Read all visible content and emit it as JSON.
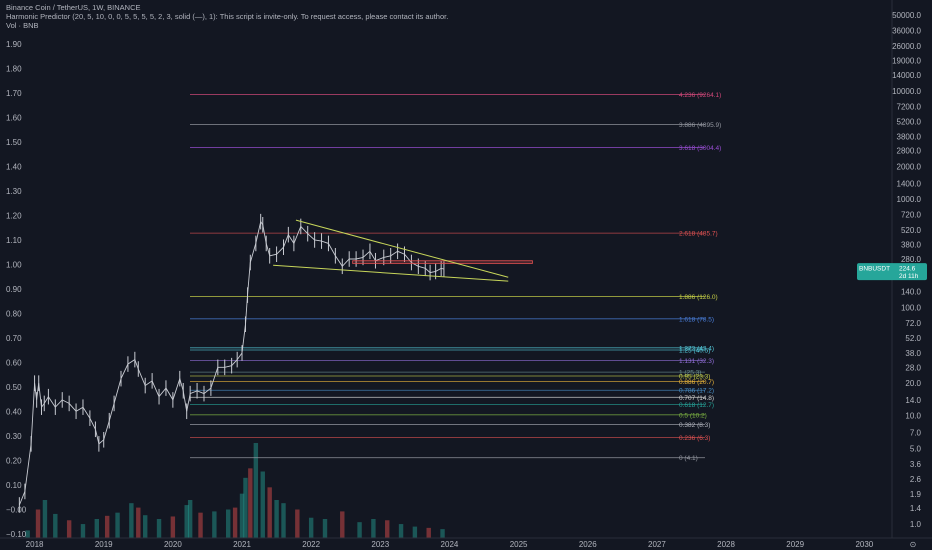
{
  "header": {
    "line1": "Binance Coin / TetherUS, 1W, BINANCE",
    "line2": "Harmonic Predictor (20, 5, 10, 0, 0, 5, 5, 5, 5, 2, 3, solid (—), 1): This script is invite-only. To request access, please contact its author.",
    "line3": "Vol · BNB"
  },
  "colors": {
    "background": "#131722",
    "up": "#26a69a",
    "down": "#ef5350",
    "candle": "#c8cbd2",
    "triangle": "#c7d65a",
    "resistance": "#e05050",
    "badge": "#26a69a"
  },
  "chart_data": {
    "type": "line",
    "title": "",
    "left_axis": {
      "ticks": [
        "1.90",
        "1.80",
        "1.70",
        "1.60",
        "1.50",
        "1.40",
        "1.30",
        "1.20",
        "1.10",
        "1.00",
        "0.90",
        "0.80",
        "0.70",
        "0.60",
        "0.50",
        "0.40",
        "0.30",
        "0.20",
        "0.10",
        "−0.00",
        "−0.10"
      ]
    },
    "right_axis": {
      "scale": "log",
      "ticks": [
        "50000.0",
        "36000.0",
        "26000.0",
        "19000.0",
        "14000.0",
        "10000.0",
        "7200.0",
        "5200.0",
        "3800.0",
        "2800.0",
        "2000.0",
        "1400.0",
        "1000.0",
        "720.0",
        "520.0",
        "380.0",
        "280.0",
        "200.0",
        "140.0",
        "100.0",
        "72.0",
        "52.0",
        "38.0",
        "28.0",
        "20.0",
        "14.0",
        "10.0",
        "7.0",
        "5.0",
        "3.6",
        "2.6",
        "1.9",
        "1.4",
        "1.0"
      ],
      "tick_values": [
        50000,
        36000,
        26000,
        19000,
        14000,
        10000,
        7200,
        5200,
        3800,
        2800,
        2000,
        1400,
        1000,
        720,
        520,
        380,
        280,
        200,
        140,
        100,
        72,
        52,
        38,
        28,
        20,
        14,
        10,
        7,
        5,
        3.6,
        2.6,
        1.9,
        1.4,
        1.0
      ],
      "ylim": [
        0.9,
        57000
      ]
    },
    "x_axis": {
      "ticks": [
        "2018",
        "2019",
        "2020",
        "2021",
        "2022",
        "2023",
        "2024",
        "2025",
        "2026",
        "2027",
        "2028",
        "2029",
        "2030"
      ],
      "tick_values": [
        2018,
        2019,
        2020,
        2021,
        2022,
        2023,
        2024,
        2025,
        2026,
        2027,
        2028,
        2029,
        2030
      ],
      "xlim": [
        2017.5,
        2030.4
      ],
      "corner_label": "⊙"
    },
    "price_series": {
      "name": "BNB/USDT",
      "x": [
        2017.78,
        2017.86,
        2017.95,
        2018.0,
        2018.03,
        2018.06,
        2018.1,
        2018.14,
        2018.2,
        2018.3,
        2018.4,
        2018.5,
        2018.6,
        2018.7,
        2018.8,
        2018.88,
        2018.93,
        2019.0,
        2019.08,
        2019.15,
        2019.25,
        2019.35,
        2019.45,
        2019.5,
        2019.6,
        2019.7,
        2019.8,
        2019.9,
        2020.0,
        2020.1,
        2020.15,
        2020.2,
        2020.25,
        2020.35,
        2020.45,
        2020.55,
        2020.65,
        2020.75,
        2020.85,
        2020.93,
        2021.0,
        2021.05,
        2021.08,
        2021.12,
        2021.2,
        2021.27,
        2021.3,
        2021.35,
        2021.4,
        2021.5,
        2021.6,
        2021.67,
        2021.75,
        2021.85,
        2021.95,
        2022.05,
        2022.15,
        2022.25,
        2022.35,
        2022.45,
        2022.55,
        2022.65,
        2022.75,
        2022.85,
        2022.93,
        2023.05,
        2023.15,
        2023.25,
        2023.35,
        2023.45,
        2023.55,
        2023.65,
        2023.72,
        2023.8,
        2023.88,
        2023.92
      ],
      "y": [
        1.5,
        2.0,
        5.5,
        20,
        14,
        20,
        12,
        13,
        15,
        12,
        14,
        13,
        11,
        12,
        9.5,
        7.5,
        5.5,
        6,
        9,
        13,
        22,
        30,
        33,
        27,
        19,
        21,
        15,
        18,
        14,
        22,
        17,
        11,
        16,
        17,
        16,
        18,
        28,
        28,
        29,
        33,
        38,
        70,
        130,
        260,
        390,
        620,
        580,
        390,
        300,
        310,
        360,
        470,
        390,
        560,
        480,
        420,
        410,
        390,
        300,
        240,
        280,
        280,
        290,
        330,
        270,
        290,
        300,
        330,
        310,
        260,
        240,
        230,
        210,
        215,
        230,
        226
      ],
      "current_price": "224.6",
      "countdown": "2d 11h"
    },
    "volume": {
      "x": [
        2017.9,
        2018.05,
        2018.15,
        2018.3,
        2018.5,
        2018.7,
        2018.9,
        2019.05,
        2019.2,
        2019.4,
        2019.5,
        2019.6,
        2019.8,
        2020.0,
        2020.2,
        2020.25,
        2020.4,
        2020.6,
        2020.8,
        2020.9,
        2021.0,
        2021.05,
        2021.12,
        2021.2,
        2021.3,
        2021.4,
        2021.5,
        2021.6,
        2021.8,
        2022.0,
        2022.2,
        2022.45,
        2022.7,
        2022.9,
        2023.1,
        2023.3,
        2023.5,
        2023.7,
        2023.9
      ],
      "v": [
        12,
        45,
        60,
        38,
        28,
        22,
        30,
        35,
        40,
        55,
        48,
        36,
        30,
        34,
        52,
        60,
        40,
        42,
        45,
        48,
        70,
        95,
        110,
        150,
        105,
        80,
        60,
        55,
        45,
        32,
        30,
        42,
        25,
        30,
        28,
        22,
        18,
        16,
        14
      ]
    },
    "fib_levels": [
      {
        "label": "4.236 (9264.1)",
        "price": 9264.1,
        "color": "#d5497b"
      },
      {
        "label": "3.886 (4895.9)",
        "price": 4895.9,
        "color": "#9598a1"
      },
      {
        "label": "3.618 (3004.4)",
        "price": 3004.4,
        "color": "#9b4fd6"
      },
      {
        "label": "2.618 (485.7)",
        "price": 485.7,
        "color": "#e05252"
      },
      {
        "label": "1.886 (126.0)",
        "price": 126.0,
        "color": "#c8d247"
      },
      {
        "label": "1.618 (78.5)",
        "price": 78.5,
        "color": "#4a7fdc"
      },
      {
        "label": "1.272 (42.4)",
        "price": 42.4,
        "color": "#53c8d8"
      },
      {
        "label": "1.25 (40.5)",
        "price": 40.5,
        "color": "#53c8d8"
      },
      {
        "label": "1.131 (32.3)",
        "price": 32.3,
        "color": "#9370db"
      },
      {
        "label": "1 (25.3)",
        "price": 25.3,
        "color": "#6b8e8e"
      },
      {
        "label": "0.95 (23.3)",
        "price": 23.3,
        "color": "#c8d247"
      },
      {
        "label": "0.886 (20.7)",
        "price": 20.7,
        "color": "#f0b93a"
      },
      {
        "label": "0.786 (17.2)",
        "price": 17.2,
        "color": "#4a90c8"
      },
      {
        "label": "0.707 (14.8)",
        "price": 14.8,
        "color": "#d0d0d0"
      },
      {
        "label": "0.618 (12.7)",
        "price": 12.7,
        "color": "#26a69a"
      },
      {
        "label": "0.5 (10.2)",
        "price": 10.2,
        "color": "#7cb342"
      },
      {
        "label": "0.382 (8.3)",
        "price": 8.3,
        "color": "#b2b5be"
      },
      {
        "label": "0.236 (6.3)",
        "price": 6.3,
        "color": "#e05252"
      },
      {
        "label": "0 (4.1)",
        "price": 4.1,
        "color": "#9598a1"
      }
    ],
    "triangle": {
      "upper": {
        "x": [
          2021.78,
          2024.85
        ],
        "y": [
          640,
          190
        ]
      },
      "lower": {
        "x": [
          2021.45,
          2024.85
        ],
        "y": [
          245,
          175
        ]
      }
    },
    "resistance_zone": {
      "x": [
        2022.6,
        2025.2
      ],
      "y": [
        255,
        270
      ]
    }
  },
  "price_badge": {
    "symbol": "BNBUSDT",
    "price": "224.6",
    "countdown": "2d 11h"
  }
}
